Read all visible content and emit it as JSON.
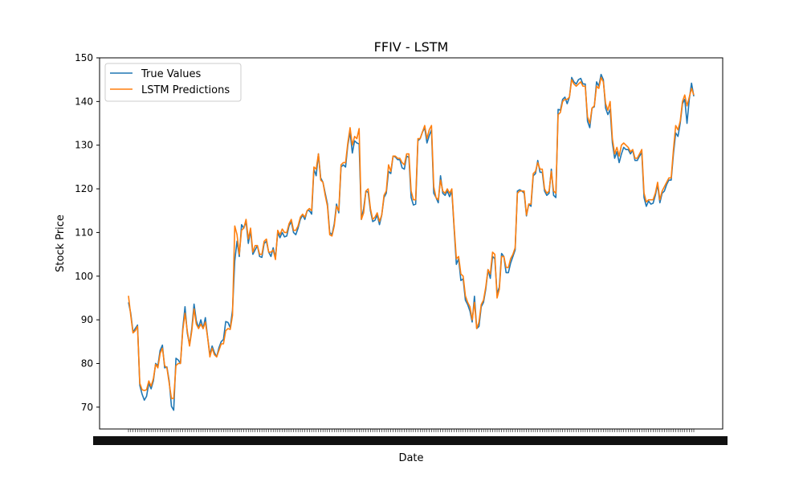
{
  "chart_data": {
    "type": "line",
    "title": "FFIV - LSTM",
    "xlabel": "Date",
    "ylabel": "Stock Price",
    "ylim": [
      65,
      150
    ],
    "yticks": [
      70,
      80,
      90,
      100,
      110,
      120,
      130,
      140,
      150
    ],
    "grid": false,
    "legend_position": "top-left",
    "series": [
      {
        "name": "True Values",
        "color": "#1f77b4",
        "values": [
          94.0,
          91.5,
          87.2,
          88.0,
          88.8,
          75.0,
          73.0,
          71.6,
          72.5,
          75.5,
          74.2,
          76.0,
          80.0,
          79.5,
          83.0,
          84.2,
          79.0,
          79.2,
          76.0,
          70.2,
          69.3,
          81.2,
          80.8,
          80.0,
          88.0,
          93.0,
          87.0,
          84.3,
          88.0,
          93.6,
          89.8,
          88.2,
          90.0,
          88.0,
          90.5,
          86.0,
          82.0,
          84.0,
          82.5,
          81.5,
          83.6,
          85.0,
          85.5,
          89.6,
          89.4,
          88.2,
          92.2,
          103.5,
          108.0,
          104.5,
          111.8,
          111.0,
          112.5,
          107.5,
          110.5,
          105.0,
          106.0,
          107.0,
          104.5,
          104.3,
          107.5,
          108.0,
          105.5,
          104.5,
          106.5,
          104.2,
          110.0,
          108.8,
          110.0,
          109.0,
          109.2,
          111.5,
          112.5,
          110.0,
          109.5,
          111.0,
          113.0,
          114.0,
          113.0,
          115.0,
          115.0,
          114.2,
          124.5,
          123.0,
          128.0,
          122.5,
          121.5,
          119.0,
          116.5,
          110.0,
          109.5,
          112.0,
          116.5,
          114.5,
          125.0,
          125.5,
          125.0,
          130.0,
          133.0,
          128.2,
          131.0,
          130.5,
          130.3,
          113.0,
          115.5,
          119.5,
          119.2,
          115.0,
          112.5,
          112.8,
          114.0,
          111.8,
          114.0,
          118.0,
          119.0,
          124.0,
          123.5,
          127.5,
          127.3,
          126.7,
          126.7,
          124.8,
          124.5,
          127.5,
          127.2,
          118.0,
          116.3,
          116.5,
          131.0,
          131.5,
          133.0,
          134.0,
          130.5,
          132.2,
          133.5,
          119.0,
          118.0,
          116.8,
          123.0,
          119.0,
          118.5,
          119.5,
          118.2,
          119.5,
          111.0,
          102.7,
          104.0,
          99.0,
          99.4,
          94.5,
          93.5,
          92.0,
          89.5,
          95.4,
          88.0,
          88.5,
          93.0,
          94.0,
          97.0,
          101.5,
          99.5,
          104.5,
          104.0,
          96.0,
          97.5,
          105.2,
          104.5,
          100.8,
          100.8,
          103.0,
          104.5,
          106.0,
          119.5,
          119.8,
          119.5,
          119.0,
          113.8,
          116.5,
          116.0,
          123.0,
          123.5,
          126.5,
          123.8,
          123.8,
          119.5,
          118.5,
          119.0,
          124.5,
          118.5,
          118.0,
          138.2,
          138.0,
          140.5,
          141.0,
          139.5,
          141.0,
          145.5,
          144.5,
          144.0,
          145.0,
          145.3,
          144.0,
          144.0,
          135.5,
          134.0,
          138.5,
          138.8,
          144.5,
          143.5,
          146.2,
          145.0,
          138.5,
          137.0,
          138.2,
          130.5,
          127.0,
          128.5,
          126.0,
          128.0,
          129.5,
          129.0,
          129.0,
          128.0,
          128.8,
          126.5,
          126.5,
          127.5,
          128.3,
          118.0,
          116.0,
          117.2,
          116.5,
          116.7,
          118.5,
          121.0,
          116.8,
          119.0,
          119.5,
          121.0,
          122.0,
          122.0,
          128.0,
          132.8,
          132.0,
          135.0,
          139.5,
          140.5,
          135.0,
          140.5,
          144.2,
          141.2
        ],
        "description_note": ""
      },
      {
        "name": "LSTM Predictions",
        "color": "#ff7f0e",
        "values": [
          95.5,
          91.0,
          87.0,
          87.5,
          88.5,
          75.5,
          74.0,
          73.8,
          74.0,
          76.0,
          74.8,
          76.5,
          79.8,
          79.0,
          82.3,
          83.5,
          79.5,
          79.0,
          75.5,
          72.0,
          72.0,
          79.5,
          80.0,
          80.0,
          87.5,
          91.5,
          87.5,
          84.0,
          87.5,
          92.5,
          89.0,
          88.0,
          89.0,
          88.0,
          89.5,
          86.0,
          81.5,
          83.5,
          82.0,
          81.5,
          83.0,
          84.5,
          84.5,
          87.5,
          88.0,
          87.8,
          91.0,
          111.5,
          109.5,
          105.0,
          110.5,
          111.0,
          113.0,
          108.5,
          111.0,
          105.5,
          107.0,
          107.0,
          105.0,
          105.0,
          108.0,
          108.5,
          105.5,
          105.5,
          106.0,
          103.8,
          110.5,
          109.5,
          110.8,
          110.0,
          110.0,
          112.0,
          113.0,
          110.5,
          110.5,
          111.5,
          113.5,
          114.2,
          113.5,
          115.0,
          115.5,
          115.0,
          125.0,
          124.5,
          128.0,
          122.0,
          121.5,
          118.5,
          116.0,
          109.5,
          109.2,
          111.5,
          116.0,
          115.0,
          125.5,
          126.0,
          126.0,
          130.5,
          134.0,
          130.0,
          132.0,
          131.5,
          133.8,
          113.0,
          114.5,
          119.5,
          120.0,
          115.5,
          113.0,
          113.5,
          114.5,
          112.5,
          114.0,
          118.5,
          119.5,
          125.5,
          124.0,
          127.5,
          127.5,
          127.0,
          127.0,
          126.0,
          125.5,
          128.0,
          128.0,
          119.5,
          117.5,
          117.5,
          131.5,
          131.5,
          133.0,
          134.5,
          131.5,
          133.5,
          134.5,
          120.5,
          118.0,
          117.5,
          122.0,
          119.5,
          119.0,
          120.0,
          119.0,
          120.0,
          111.5,
          104.0,
          104.5,
          100.5,
          100.0,
          95.5,
          94.0,
          93.0,
          90.0,
          94.0,
          88.0,
          89.5,
          93.5,
          94.5,
          97.5,
          101.5,
          100.5,
          105.5,
          105.0,
          95.0,
          97.0,
          104.5,
          104.5,
          102.0,
          102.0,
          104.0,
          105.0,
          106.5,
          119.0,
          119.5,
          119.5,
          119.5,
          114.0,
          116.5,
          116.5,
          123.5,
          124.0,
          126.0,
          124.5,
          124.5,
          120.0,
          119.0,
          119.5,
          124.0,
          119.5,
          119.0,
          137.0,
          137.5,
          140.0,
          140.5,
          140.5,
          141.0,
          145.0,
          144.0,
          143.5,
          144.0,
          144.5,
          143.5,
          143.5,
          136.5,
          135.0,
          138.5,
          139.0,
          143.5,
          143.0,
          145.5,
          144.5,
          139.5,
          138.0,
          140.0,
          131.5,
          128.0,
          129.5,
          127.5,
          130.0,
          130.5,
          130.0,
          129.5,
          128.5,
          129.0,
          127.0,
          127.0,
          128.0,
          129.0,
          119.0,
          117.0,
          117.5,
          117.5,
          117.5,
          119.0,
          121.5,
          117.5,
          119.5,
          120.5,
          121.5,
          122.5,
          122.5,
          129.0,
          134.5,
          133.5,
          135.5,
          140.0,
          141.5,
          139.0,
          141.0,
          143.0,
          141.5
        ]
      }
    ]
  }
}
